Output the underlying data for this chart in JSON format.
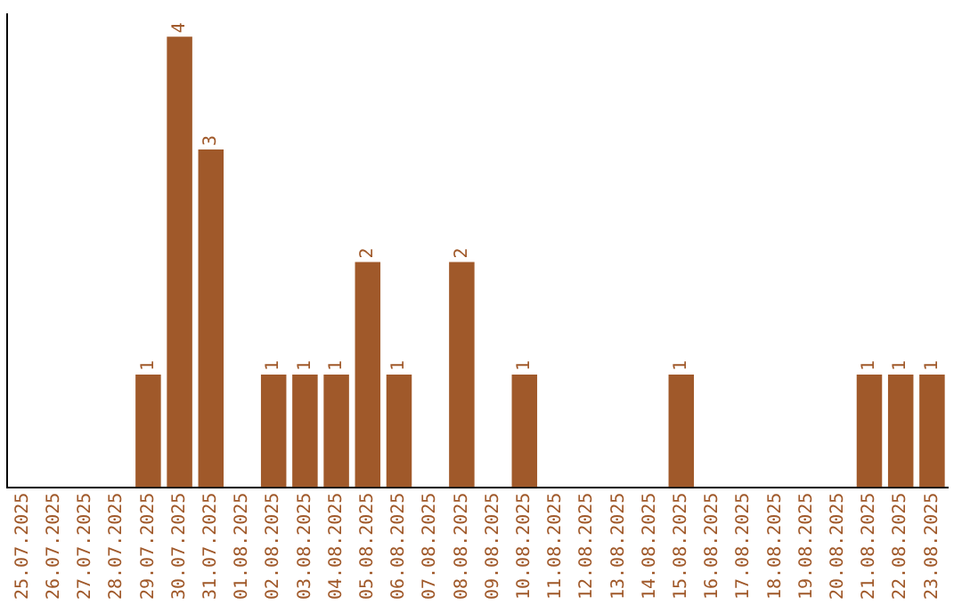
{
  "chart_data": {
    "type": "bar",
    "categories": [
      "25.07.2025",
      "26.07.2025",
      "27.07.2025",
      "28.07.2025",
      "29.07.2025",
      "30.07.2025",
      "31.07.2025",
      "01.08.2025",
      "02.08.2025",
      "03.08.2025",
      "04.08.2025",
      "05.08.2025",
      "06.08.2025",
      "07.08.2025",
      "08.08.2025",
      "09.08.2025",
      "10.08.2025",
      "11.08.2025",
      "12.08.2025",
      "13.08.2025",
      "14.08.2025",
      "15.08.2025",
      "16.08.2025",
      "17.08.2025",
      "18.08.2025",
      "19.08.2025",
      "20.08.2025",
      "21.08.2025",
      "22.08.2025",
      "23.08.2025"
    ],
    "values": [
      0,
      0,
      0,
      0,
      1,
      4,
      3,
      0,
      1,
      1,
      1,
      2,
      1,
      0,
      2,
      0,
      1,
      0,
      0,
      0,
      0,
      1,
      0,
      0,
      0,
      0,
      0,
      1,
      1,
      1
    ],
    "value_labels": [
      null,
      null,
      null,
      null,
      "1",
      "4",
      "3",
      null,
      "1",
      "1",
      "1",
      "2",
      "1",
      null,
      "2",
      null,
      "1",
      null,
      null,
      null,
      null,
      "1",
      null,
      null,
      null,
      null,
      null,
      "1",
      "1",
      "1"
    ],
    "color": "#a0592a",
    "ylim": [
      0,
      4.2
    ],
    "grid": false,
    "legend": false
  }
}
